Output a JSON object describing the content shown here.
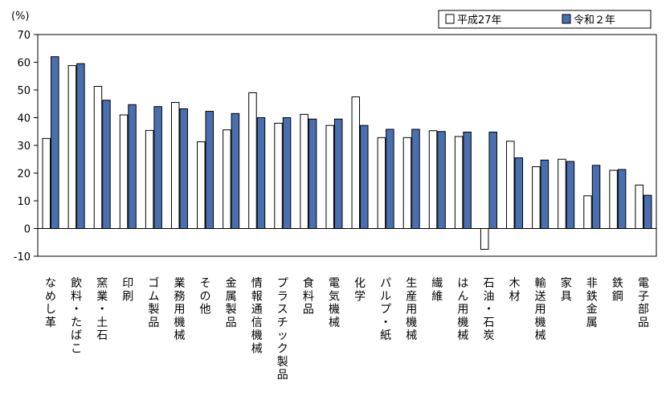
{
  "chart_data": {
    "type": "bar",
    "unit_label": "(%)",
    "categories": [
      "なめし革",
      "飲料・たばこ",
      "窯業・土石",
      "印刷",
      "ゴム製品",
      "業務用機械",
      "その他",
      "金属製品",
      "情報通信機械",
      "プラスチック製品",
      "食料品",
      "電気機械",
      "化学",
      "パルプ・紙",
      "生産用機械",
      "繊維",
      "はん用機械",
      "石油・石炭",
      "木材",
      "輸送用機械",
      "家具",
      "非鉄金属",
      "鉄鋼",
      "電子部品"
    ],
    "series": [
      {
        "name": "平成27年",
        "color": "#ffffff",
        "values": [
          32.5,
          58.8,
          51.3,
          41.0,
          35.4,
          45.5,
          31.3,
          35.6,
          49.0,
          38.0,
          41.2,
          37.2,
          47.5,
          32.8,
          32.8,
          35.3,
          33.2,
          -7.5,
          31.5,
          22.3,
          25.0,
          11.8,
          21.0,
          15.7
        ]
      },
      {
        "name": "令和２年",
        "color": "#4a6fb0",
        "values": [
          62.0,
          59.5,
          46.3,
          44.7,
          44.0,
          43.2,
          42.3,
          41.5,
          40.0,
          40.0,
          39.5,
          39.5,
          37.2,
          35.8,
          35.8,
          35.0,
          34.8,
          34.8,
          25.5,
          24.7,
          24.2,
          22.8,
          21.3,
          12.0
        ]
      }
    ],
    "ylim": [
      -10,
      70
    ],
    "yticks": [
      -10,
      0,
      10,
      20,
      30,
      40,
      50,
      60,
      70
    ],
    "grid": false,
    "legend": "top-right"
  }
}
